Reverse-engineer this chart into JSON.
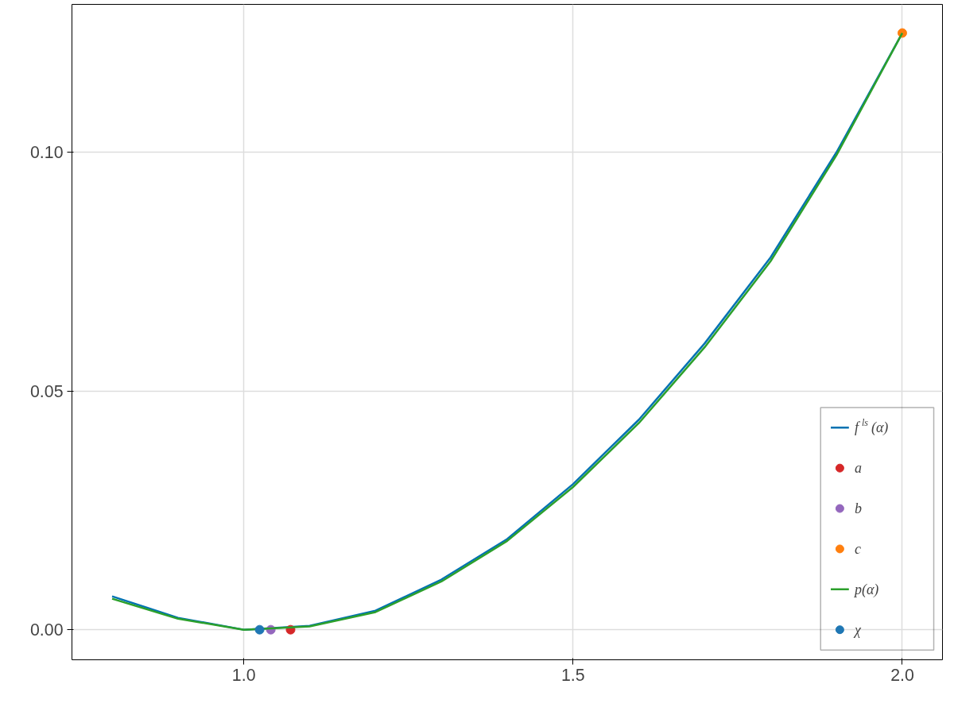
{
  "chart_data": {
    "type": "line",
    "xlim": [
      0.739,
      2.061
    ],
    "ylim": [
      -0.0063,
      0.131
    ],
    "xticks": [
      {
        "value": 1,
        "label": "1.0"
      },
      1.5,
      {
        "value": 2,
        "label": "2.0"
      }
    ],
    "yticks": [
      {
        "value": 0,
        "label": "0.00"
      },
      0.05,
      {
        "value": 0.1,
        "label": "0.10"
      }
    ],
    "grid": true,
    "legend": "bottom right",
    "series": [
      {
        "name": "f$^{ls}$(α)",
        "color": "#0072b2",
        "x": [
          0.8,
          0.9,
          1.0,
          1.1,
          1.2,
          1.3,
          1.4,
          1.5,
          1.6,
          1.7,
          1.8,
          1.9,
          2.0
        ],
        "values": [
          0.007,
          0.0025,
          0,
          0.0008,
          0.004,
          0.0105,
          0.019,
          0.0305,
          0.044,
          0.06,
          0.078,
          0.1,
          0.125
        ]
      },
      {
        "name": "a",
        "type": "scatter",
        "color": "#d62728",
        "x": [
          1.071
        ],
        "values": [
          0
        ]
      },
      {
        "name": "b",
        "type": "scatter",
        "color": "#9467bd",
        "x": [
          1.041
        ],
        "values": [
          0
        ]
      },
      {
        "name": "c",
        "type": "scatter",
        "color": "#ff7f0e",
        "x": [
          2.0
        ],
        "values": [
          0.125
        ]
      },
      {
        "name": "p(α)",
        "color": "#2ca02c",
        "x": [
          0.8,
          0.9,
          1.0,
          1.1,
          1.2,
          1.3,
          1.4,
          1.5,
          1.6,
          1.7,
          1.8,
          1.9,
          2.0
        ],
        "values": [
          0.0065,
          0.0023,
          0,
          0.0007,
          0.0037,
          0.0101,
          0.0186,
          0.0299,
          0.0433,
          0.0592,
          0.0772,
          0.0994,
          0.125
        ]
      },
      {
        "name": "χ",
        "type": "scatter",
        "color": "#1f77b4",
        "x": [
          1.024
        ],
        "values": [
          0
        ]
      }
    ]
  }
}
